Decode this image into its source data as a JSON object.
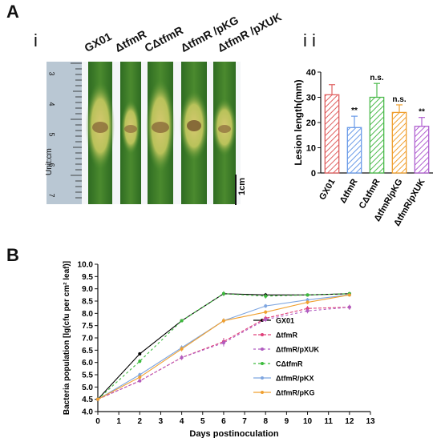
{
  "panel_a": {
    "letter": "A",
    "sub_i": "i",
    "sub_ii": "i i",
    "strains": [
      "GX01",
      "ΔtfmR",
      "CΔtfmR",
      "ΔtfmR /pKG",
      "ΔtfmR /pXUK"
    ],
    "ruler_unit": "Unit:cm",
    "ruler_numbers": [
      "3",
      "4",
      "5",
      "6",
      "7"
    ],
    "scale_bar": "1cm"
  },
  "panel_b": {
    "letter": "B"
  },
  "colors": {
    "GX01": "#000000",
    "dtfmR": "#e0407a",
    "dtfmR_pXUK": "#b05cc0",
    "CdtfmR": "#3dbb3d",
    "dtfmR_pKX": "#7fa6e0",
    "dtfmR_pKG": "#f0a030",
    "bar_red": "#e06060",
    "bar_blue": "#6a9be8",
    "bar_green": "#4cbb4c",
    "bar_orange": "#f0a030",
    "bar_purple": "#b060d0"
  },
  "chart_data": [
    {
      "type": "bar",
      "title": "",
      "xlabel": "",
      "ylabel": "Lesion length(mm)",
      "ylim": [
        0,
        40
      ],
      "yticks": [
        "0",
        "10",
        "20",
        "30",
        "40"
      ],
      "categories": [
        "GX01",
        "ΔtfmR",
        "CΔtfmR",
        "ΔtfmR/pKG",
        "ΔtfmR/pXUK"
      ],
      "values": [
        31,
        18,
        30,
        24,
        18.5
      ],
      "errors": [
        4,
        4.5,
        5.5,
        3,
        3.5
      ],
      "annotations": [
        "",
        "**",
        "n.s.",
        "n.s.",
        "**"
      ],
      "grid": false
    },
    {
      "type": "line",
      "title": "",
      "xlabel": "Days postinoculation",
      "ylabel": "Bacteria population [lg(cfu per cm² leaf)]",
      "xlim": [
        0,
        13
      ],
      "ylim": [
        4.0,
        10.0
      ],
      "xticks": [
        "0",
        "1",
        "2",
        "3",
        "4",
        "5",
        "6",
        "7",
        "8",
        "9",
        "10",
        "11",
        "12",
        "13"
      ],
      "yticks": [
        "4.0",
        "4.5",
        "5.0",
        "5.5",
        "6.0",
        "6.5",
        "7.0",
        "7.5",
        "8.0",
        "8.5",
        "9.0",
        "9.5",
        "10.0"
      ],
      "x": [
        0,
        2,
        4,
        6,
        8,
        10,
        12
      ],
      "legend_position": "right",
      "grid": false,
      "series": [
        {
          "name": "GX01",
          "values": [
            4.5,
            6.35,
            7.7,
            8.8,
            8.75,
            8.75,
            8.8
          ],
          "errors": [
            0.05,
            0.05,
            0.05,
            0.08,
            0.08,
            0.05,
            0.05
          ]
        },
        {
          "name": "ΔtfmR",
          "values": [
            4.5,
            5.25,
            6.2,
            6.85,
            7.8,
            8.2,
            8.25
          ],
          "errors": [
            0.05,
            0.05,
            0.1,
            0.15,
            0.1,
            0.1,
            0.1
          ]
        },
        {
          "name": "ΔtfmR/pXUK",
          "values": [
            4.5,
            5.25,
            6.2,
            6.8,
            7.75,
            8.1,
            8.25
          ],
          "errors": [
            0.05,
            0.05,
            0.1,
            0.15,
            0.1,
            0.1,
            0.1
          ]
        },
        {
          "name": "CΔtfmR",
          "values": [
            4.5,
            6.05,
            7.7,
            8.8,
            8.7,
            8.75,
            8.8
          ],
          "errors": [
            0.05,
            0.08,
            0.05,
            0.1,
            0.1,
            0.05,
            0.05
          ]
        },
        {
          "name": "ΔtfmR/pKX",
          "values": [
            4.5,
            5.5,
            6.6,
            7.7,
            8.3,
            8.55,
            8.75
          ],
          "errors": [
            0.05,
            0.08,
            0.1,
            0.1,
            0.08,
            0.08,
            0.05
          ]
        },
        {
          "name": "ΔtfmR/pKG",
          "values": [
            4.5,
            5.4,
            6.55,
            7.7,
            8.05,
            8.45,
            8.75
          ],
          "errors": [
            0.05,
            0.08,
            0.1,
            0.1,
            0.08,
            0.08,
            0.05
          ]
        }
      ]
    }
  ]
}
